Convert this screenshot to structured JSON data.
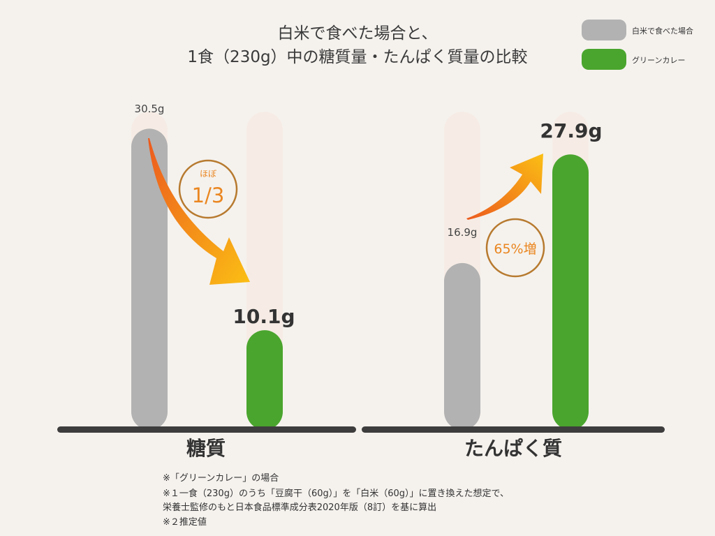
{
  "title_line1": "白米で食べた場合と、",
  "title_line2": "1食（230g）中の糖質量・たんぱく質量の比較",
  "legend": [
    {
      "label": "白米で食べた場合",
      "color": "#b2b2b2"
    },
    {
      "label": "グリーンカレー",
      "color": "#4aa52e"
    }
  ],
  "chart_data": {
    "type": "bar",
    "categories": [
      "糖質",
      "たんぱく質"
    ],
    "series": [
      {
        "name": "白米で食べた場合",
        "values": [
          30.5,
          16.9
        ],
        "value_labels": [
          "30.5g",
          "16.9g"
        ]
      },
      {
        "name": "グリーンカレー",
        "values": [
          10.1,
          27.9
        ],
        "value_labels": [
          "10.1g",
          "27.9g"
        ]
      }
    ],
    "annotations": [
      {
        "prefix": "ほぼ",
        "text": "1/3"
      },
      {
        "text": "65%増"
      }
    ],
    "legend_position": "top-right",
    "grid": false
  },
  "footnotes": [
    "※「グリーンカレー」の場合",
    "※１一食（230g）のうち「豆腐干（60g）」を「白米（60g）」に置き換えた想定で、",
    "栄養士監修のもと日本食品標準成分表2020年版（8訂）を基に算出",
    "※２推定値"
  ]
}
